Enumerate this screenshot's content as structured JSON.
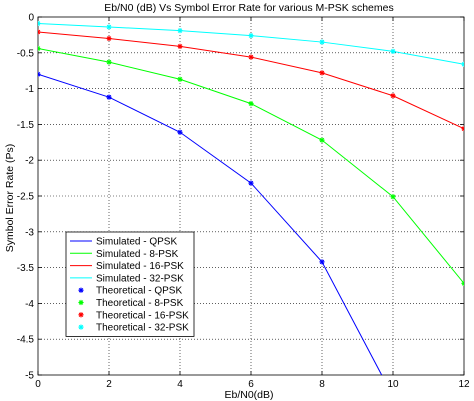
{
  "chart_data": {
    "type": "line",
    "title": "Eb/N0 (dB) Vs Symbol Error Rate for various M-PSK schemes",
    "xlabel": "Eb/N0(dB)",
    "ylabel": "Symbol Error Rate (Ps)",
    "xlim": [
      0,
      12
    ],
    "ylim": [
      -5,
      0
    ],
    "grid": true,
    "legend_position": "bottom-left",
    "x": [
      0,
      2,
      4,
      6,
      8,
      10,
      12
    ],
    "x_ticks": [
      "0",
      "2",
      "4",
      "6",
      "8",
      "10",
      "12"
    ],
    "y_ticks": [
      "0",
      "-0.5",
      "-1",
      "-1.5",
      "-2",
      "-2.5",
      "-3",
      "-3.5",
      "-4",
      "-4.5",
      "-5"
    ],
    "series": [
      {
        "name": "Simulated - QPSK",
        "style": "line",
        "color": "#0000ff",
        "values": [
          -0.8,
          -1.12,
          -1.61,
          -2.32,
          -3.42,
          -5.3,
          null
        ]
      },
      {
        "name": "Simulated - 8-PSK",
        "style": "line",
        "color": "#00ff00",
        "values": [
          -0.44,
          -0.63,
          -0.87,
          -1.21,
          -1.72,
          -2.51,
          -3.72
        ]
      },
      {
        "name": "Simulated - 16-PSK",
        "style": "line",
        "color": "#ff0000",
        "values": [
          -0.21,
          -0.3,
          -0.41,
          -0.56,
          -0.78,
          -1.1,
          -1.56
        ]
      },
      {
        "name": "Simulated - 32-PSK",
        "style": "line",
        "color": "#00ffff",
        "values": [
          -0.09,
          -0.14,
          -0.19,
          -0.26,
          -0.35,
          -0.48,
          -0.66
        ]
      },
      {
        "name": "Theoretical - QPSK",
        "style": "marker",
        "color": "#0000ff",
        "values": [
          -0.8,
          -1.12,
          -1.61,
          -2.32,
          -3.42,
          null,
          null
        ]
      },
      {
        "name": "Theoretical - 8-PSK",
        "style": "marker",
        "color": "#00ff00",
        "values": [
          -0.44,
          -0.63,
          -0.87,
          -1.21,
          -1.72,
          -2.51,
          -3.72
        ]
      },
      {
        "name": "Theoretical - 16-PSK",
        "style": "marker",
        "color": "#ff0000",
        "values": [
          -0.21,
          -0.3,
          -0.41,
          -0.56,
          -0.78,
          -1.1,
          -1.56
        ]
      },
      {
        "name": "Theoretical - 32-PSK",
        "style": "marker",
        "color": "#00ffff",
        "values": [
          -0.09,
          -0.14,
          -0.19,
          -0.26,
          -0.35,
          -0.48,
          -0.66
        ]
      }
    ]
  }
}
